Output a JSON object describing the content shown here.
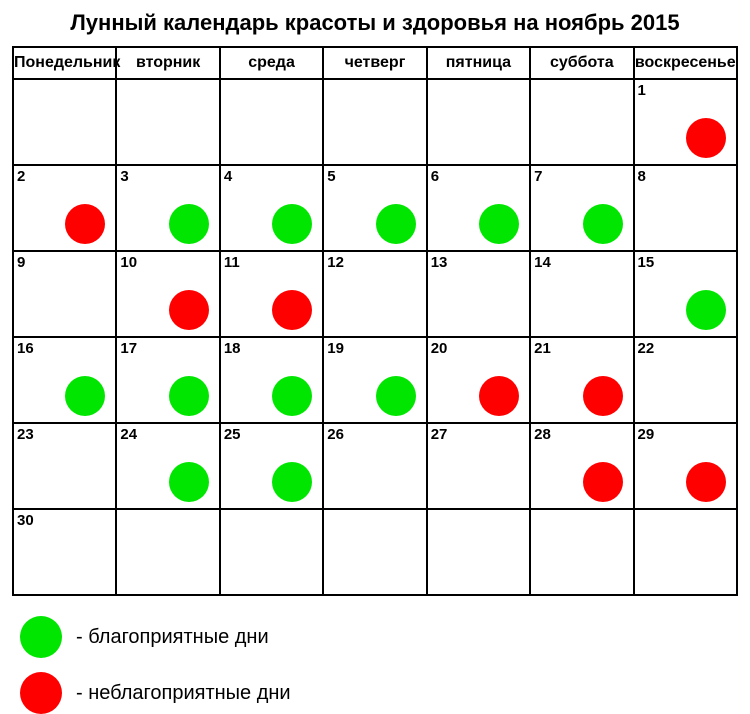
{
  "title": "Лунный календарь красоты и здоровья на ноябрь 2015",
  "weekdays": [
    "Понедельник",
    "вторник",
    "среда",
    "четверг",
    "пятница",
    "суббота",
    "воскресенье"
  ],
  "colors": {
    "favorable": "#00e600",
    "unfavorable": "#ff0000",
    "border": "#000000",
    "background": "#ffffff"
  },
  "rows": [
    [
      {
        "day": "",
        "dot": null
      },
      {
        "day": "",
        "dot": null
      },
      {
        "day": "",
        "dot": null
      },
      {
        "day": "",
        "dot": null
      },
      {
        "day": "",
        "dot": null
      },
      {
        "day": "",
        "dot": null
      },
      {
        "day": "1",
        "dot": "red"
      }
    ],
    [
      {
        "day": "2",
        "dot": "red"
      },
      {
        "day": "3",
        "dot": "green"
      },
      {
        "day": "4",
        "dot": "green"
      },
      {
        "day": "5",
        "dot": "green"
      },
      {
        "day": "6",
        "dot": "green"
      },
      {
        "day": "7",
        "dot": "green"
      },
      {
        "day": "8",
        "dot": null
      }
    ],
    [
      {
        "day": "9",
        "dot": null
      },
      {
        "day": "10",
        "dot": "red"
      },
      {
        "day": "11",
        "dot": "red"
      },
      {
        "day": "12",
        "dot": null
      },
      {
        "day": "13",
        "dot": null
      },
      {
        "day": "14",
        "dot": null
      },
      {
        "day": "15",
        "dot": "green"
      }
    ],
    [
      {
        "day": "16",
        "dot": "green"
      },
      {
        "day": "17",
        "dot": "green"
      },
      {
        "day": "18",
        "dot": "green"
      },
      {
        "day": "19",
        "dot": "green"
      },
      {
        "day": "20",
        "dot": "red"
      },
      {
        "day": "21",
        "dot": "red"
      },
      {
        "day": "22",
        "dot": null
      }
    ],
    [
      {
        "day": "23",
        "dot": null
      },
      {
        "day": "24",
        "dot": "green"
      },
      {
        "day": "25",
        "dot": "green"
      },
      {
        "day": "26",
        "dot": null
      },
      {
        "day": "27",
        "dot": null
      },
      {
        "day": "28",
        "dot": "red"
      },
      {
        "day": "29",
        "dot": "red"
      }
    ],
    [
      {
        "day": "30",
        "dot": null
      },
      {
        "day": "",
        "dot": null
      },
      {
        "day": "",
        "dot": null
      },
      {
        "day": "",
        "dot": null
      },
      {
        "day": "",
        "dot": null
      },
      {
        "day": "",
        "dot": null
      },
      {
        "day": "",
        "dot": null
      }
    ]
  ],
  "legend": {
    "favorable": "- благоприятные дни",
    "unfavorable": "- неблагоприятные дни"
  }
}
